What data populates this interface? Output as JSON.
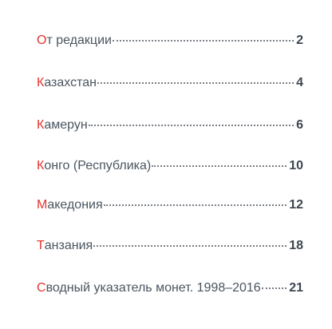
{
  "toc": {
    "entries": [
      {
        "first": "О",
        "rest": "т редакции",
        "page": "2"
      },
      {
        "first": "К",
        "rest": "азахстан",
        "page": "4"
      },
      {
        "first": "К",
        "rest": "амерун",
        "page": "6"
      },
      {
        "first": "К",
        "rest": "онго (Республика)",
        "page": "10"
      },
      {
        "first": "М",
        "rest": "акедония",
        "page": "12"
      },
      {
        "first": "Т",
        "rest": "анзания",
        "page": "18"
      },
      {
        "first": "С",
        "rest": "водный указатель монет. 1998–2016",
        "page": "21"
      }
    ]
  },
  "colors": {
    "accent": "#e2352d",
    "text": "#4a5560"
  }
}
